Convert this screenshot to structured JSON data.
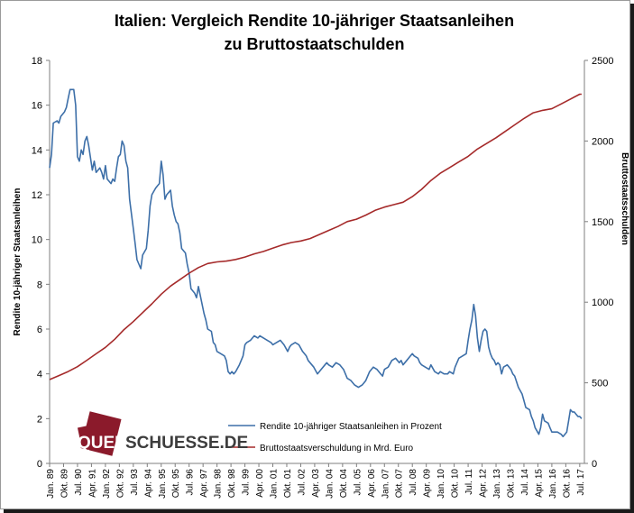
{
  "title_line1": "Italien: Vergleich Rendite 10-jähriger Staatsanleihen",
  "title_line2": "zu Bruttostaatschulden",
  "logo": {
    "part1": "QUER",
    "part2": "SCHUESSE.DE",
    "box_color": "#8b1a2b",
    "text_color": "#3d3d3d"
  },
  "chart_data": {
    "type": "line",
    "title": "Italien: Vergleich Rendite 10-jähriger Staatsanleihen zu Bruttostaatschulden",
    "ylabel_left": "Rendite 10-jähriger Staatsanleihen",
    "ylabel_right": "Bruttostaatsschulden",
    "ylim_left": [
      0,
      18
    ],
    "yticks_left": [
      "0",
      "2",
      "4",
      "6",
      "8",
      "10",
      "12",
      "14",
      "16",
      "18"
    ],
    "ylim_right": [
      0,
      2500
    ],
    "yticks_right": [
      "0",
      "500",
      "1000",
      "1500",
      "2000",
      "2500"
    ],
    "x_start": 1989.0,
    "x_end": 2017.75,
    "x_tick_labels": [
      "Jan. 89",
      "Okt. 89",
      "Jul. 90",
      "Apr. 91",
      "Jan. 92",
      "Okt. 92",
      "Jul. 93",
      "Apr. 94",
      "Jan. 95",
      "Okt. 95",
      "Jul. 96",
      "Apr. 97",
      "Jan. 98",
      "Okt. 98",
      "Jul. 99",
      "Apr. 00",
      "Jan. 01",
      "Okt. 01",
      "Jul. 02",
      "Apr. 03",
      "Jan. 04",
      "Okt. 04",
      "Jul. 05",
      "Apr. 06",
      "Jan. 07",
      "Okt. 07",
      "Jul. 08",
      "Apr. 09",
      "Jan. 10",
      "Okt. 10",
      "Jul. 11",
      "Apr. 12",
      "Jan. 13",
      "Okt. 13",
      "Jul. 14",
      "Apr. 15",
      "Jan. 16",
      "Okt. 16",
      "Jul. 17"
    ],
    "grid": false,
    "legend_position": "bottom-center",
    "series": [
      {
        "name": "Rendite 10-jähriger Staatsanleihen in Prozent",
        "axis": "left",
        "color": "#3d6fa8",
        "points": [
          [
            1989.0,
            13.2
          ],
          [
            1989.1,
            13.8
          ],
          [
            1989.2,
            15.2
          ],
          [
            1989.4,
            15.3
          ],
          [
            1989.5,
            15.2
          ],
          [
            1989.6,
            15.5
          ],
          [
            1989.8,
            15.7
          ],
          [
            1989.9,
            15.9
          ],
          [
            1990.0,
            16.3
          ],
          [
            1990.1,
            16.7
          ],
          [
            1990.3,
            16.7
          ],
          [
            1990.4,
            16.0
          ],
          [
            1990.5,
            13.7
          ],
          [
            1990.6,
            13.5
          ],
          [
            1990.7,
            14.0
          ],
          [
            1990.8,
            13.8
          ],
          [
            1990.9,
            14.4
          ],
          [
            1991.0,
            14.6
          ],
          [
            1991.1,
            14.2
          ],
          [
            1991.3,
            13.1
          ],
          [
            1991.4,
            13.5
          ],
          [
            1991.5,
            13.0
          ],
          [
            1991.7,
            13.2
          ],
          [
            1991.8,
            13.0
          ],
          [
            1991.9,
            12.7
          ],
          [
            1992.0,
            13.3
          ],
          [
            1992.1,
            12.7
          ],
          [
            1992.3,
            12.5
          ],
          [
            1992.4,
            12.7
          ],
          [
            1992.5,
            12.6
          ],
          [
            1992.6,
            13.2
          ],
          [
            1992.7,
            13.7
          ],
          [
            1992.8,
            13.8
          ],
          [
            1992.9,
            14.4
          ],
          [
            1993.0,
            14.2
          ],
          [
            1993.1,
            13.5
          ],
          [
            1993.2,
            13.2
          ],
          [
            1993.3,
            11.8
          ],
          [
            1993.5,
            10.5
          ],
          [
            1993.6,
            9.8
          ],
          [
            1993.7,
            9.1
          ],
          [
            1993.8,
            8.9
          ],
          [
            1993.9,
            8.7
          ],
          [
            1994.0,
            9.3
          ],
          [
            1994.2,
            9.6
          ],
          [
            1994.3,
            10.4
          ],
          [
            1994.4,
            11.5
          ],
          [
            1994.5,
            12.0
          ],
          [
            1994.7,
            12.3
          ],
          [
            1994.8,
            12.4
          ],
          [
            1994.9,
            12.5
          ],
          [
            1995.0,
            13.5
          ],
          [
            1995.1,
            12.9
          ],
          [
            1995.2,
            11.8
          ],
          [
            1995.3,
            12.0
          ],
          [
            1995.5,
            12.2
          ],
          [
            1995.6,
            11.5
          ],
          [
            1995.7,
            11.1
          ],
          [
            1995.8,
            10.8
          ],
          [
            1995.9,
            10.7
          ],
          [
            1996.0,
            10.3
          ],
          [
            1996.1,
            9.6
          ],
          [
            1996.3,
            9.4
          ],
          [
            1996.4,
            8.9
          ],
          [
            1996.5,
            8.5
          ],
          [
            1996.6,
            7.8
          ],
          [
            1996.8,
            7.6
          ],
          [
            1996.9,
            7.4
          ],
          [
            1997.0,
            7.9
          ],
          [
            1997.1,
            7.5
          ],
          [
            1997.3,
            6.7
          ],
          [
            1997.4,
            6.4
          ],
          [
            1997.5,
            6.0
          ],
          [
            1997.7,
            5.9
          ],
          [
            1997.8,
            5.4
          ],
          [
            1997.9,
            5.3
          ],
          [
            1998.0,
            5.0
          ],
          [
            1998.2,
            4.9
          ],
          [
            1998.4,
            4.8
          ],
          [
            1998.5,
            4.6
          ],
          [
            1998.6,
            4.1
          ],
          [
            1998.7,
            4.0
          ],
          [
            1998.8,
            4.1
          ],
          [
            1998.9,
            4.0
          ],
          [
            1999.0,
            4.1
          ],
          [
            1999.2,
            4.4
          ],
          [
            1999.4,
            4.8
          ],
          [
            1999.5,
            5.3
          ],
          [
            1999.6,
            5.4
          ],
          [
            1999.8,
            5.5
          ],
          [
            2000.0,
            5.7
          ],
          [
            2000.2,
            5.6
          ],
          [
            2000.3,
            5.7
          ],
          [
            2000.5,
            5.6
          ],
          [
            2000.7,
            5.5
          ],
          [
            2000.9,
            5.4
          ],
          [
            2001.0,
            5.3
          ],
          [
            2001.2,
            5.4
          ],
          [
            2001.4,
            5.5
          ],
          [
            2001.6,
            5.3
          ],
          [
            2001.8,
            5.0
          ],
          [
            2001.9,
            5.2
          ],
          [
            2002.0,
            5.3
          ],
          [
            2002.2,
            5.4
          ],
          [
            2002.4,
            5.3
          ],
          [
            2002.6,
            5.0
          ],
          [
            2002.8,
            4.8
          ],
          [
            2002.9,
            4.6
          ],
          [
            2003.0,
            4.5
          ],
          [
            2003.2,
            4.3
          ],
          [
            2003.4,
            4.0
          ],
          [
            2003.6,
            4.2
          ],
          [
            2003.8,
            4.4
          ],
          [
            2003.9,
            4.5
          ],
          [
            2004.0,
            4.4
          ],
          [
            2004.2,
            4.3
          ],
          [
            2004.4,
            4.5
          ],
          [
            2004.6,
            4.4
          ],
          [
            2004.8,
            4.2
          ],
          [
            2004.9,
            4.0
          ],
          [
            2005.0,
            3.8
          ],
          [
            2005.2,
            3.7
          ],
          [
            2005.4,
            3.5
          ],
          [
            2005.6,
            3.4
          ],
          [
            2005.8,
            3.5
          ],
          [
            2005.9,
            3.6
          ],
          [
            2006.0,
            3.7
          ],
          [
            2006.2,
            4.1
          ],
          [
            2006.4,
            4.3
          ],
          [
            2006.6,
            4.2
          ],
          [
            2006.8,
            4.0
          ],
          [
            2006.9,
            3.9
          ],
          [
            2007.0,
            4.2
          ],
          [
            2007.2,
            4.3
          ],
          [
            2007.4,
            4.6
          ],
          [
            2007.6,
            4.7
          ],
          [
            2007.8,
            4.5
          ],
          [
            2007.9,
            4.6
          ],
          [
            2008.0,
            4.4
          ],
          [
            2008.2,
            4.6
          ],
          [
            2008.4,
            4.8
          ],
          [
            2008.5,
            4.9
          ],
          [
            2008.6,
            4.8
          ],
          [
            2008.8,
            4.7
          ],
          [
            2008.9,
            4.5
          ],
          [
            2009.0,
            4.4
          ],
          [
            2009.2,
            4.3
          ],
          [
            2009.4,
            4.2
          ],
          [
            2009.5,
            4.4
          ],
          [
            2009.7,
            4.1
          ],
          [
            2009.9,
            4.0
          ],
          [
            2010.0,
            4.1
          ],
          [
            2010.2,
            4.0
          ],
          [
            2010.4,
            4.0
          ],
          [
            2010.5,
            4.1
          ],
          [
            2010.7,
            4.0
          ],
          [
            2010.8,
            4.3
          ],
          [
            2011.0,
            4.7
          ],
          [
            2011.2,
            4.8
          ],
          [
            2011.4,
            4.9
          ],
          [
            2011.5,
            5.5
          ],
          [
            2011.6,
            6.0
          ],
          [
            2011.7,
            6.4
          ],
          [
            2011.8,
            7.1
          ],
          [
            2011.9,
            6.6
          ],
          [
            2012.0,
            5.6
          ],
          [
            2012.1,
            5.0
          ],
          [
            2012.2,
            5.5
          ],
          [
            2012.3,
            5.9
          ],
          [
            2012.4,
            6.0
          ],
          [
            2012.5,
            5.9
          ],
          [
            2012.6,
            5.2
          ],
          [
            2012.7,
            4.9
          ],
          [
            2012.8,
            4.7
          ],
          [
            2012.9,
            4.6
          ],
          [
            2013.0,
            4.4
          ],
          [
            2013.1,
            4.5
          ],
          [
            2013.2,
            4.4
          ],
          [
            2013.3,
            4.0
          ],
          [
            2013.4,
            4.3
          ],
          [
            2013.6,
            4.4
          ],
          [
            2013.7,
            4.3
          ],
          [
            2013.8,
            4.2
          ],
          [
            2013.9,
            4.0
          ],
          [
            2014.0,
            3.9
          ],
          [
            2014.2,
            3.4
          ],
          [
            2014.4,
            3.1
          ],
          [
            2014.5,
            2.8
          ],
          [
            2014.6,
            2.5
          ],
          [
            2014.8,
            2.4
          ],
          [
            2014.9,
            2.1
          ],
          [
            2015.0,
            1.9
          ],
          [
            2015.1,
            1.6
          ],
          [
            2015.3,
            1.3
          ],
          [
            2015.4,
            1.6
          ],
          [
            2015.5,
            2.2
          ],
          [
            2015.6,
            1.9
          ],
          [
            2015.8,
            1.8
          ],
          [
            2015.9,
            1.6
          ],
          [
            2016.0,
            1.4
          ],
          [
            2016.2,
            1.4
          ],
          [
            2016.3,
            1.4
          ],
          [
            2016.5,
            1.3
          ],
          [
            2016.6,
            1.2
          ],
          [
            2016.8,
            1.4
          ],
          [
            2016.9,
            1.9
          ],
          [
            2017.0,
            2.4
          ],
          [
            2017.1,
            2.3
          ],
          [
            2017.2,
            2.3
          ],
          [
            2017.3,
            2.2
          ],
          [
            2017.4,
            2.1
          ],
          [
            2017.5,
            2.1
          ],
          [
            2017.6,
            2.0
          ]
        ]
      },
      {
        "name": "Bruttostaatsverschuldung in Mrd. Euro",
        "axis": "right",
        "color": "#a52a2a",
        "points": [
          [
            1989.0,
            520
          ],
          [
            1989.5,
            545
          ],
          [
            1990.0,
            570
          ],
          [
            1990.5,
            600
          ],
          [
            1991.0,
            640
          ],
          [
            1991.5,
            680
          ],
          [
            1992.0,
            720
          ],
          [
            1992.5,
            770
          ],
          [
            1993.0,
            830
          ],
          [
            1993.5,
            880
          ],
          [
            1994.0,
            935
          ],
          [
            1994.5,
            990
          ],
          [
            1995.0,
            1050
          ],
          [
            1995.5,
            1100
          ],
          [
            1996.0,
            1140
          ],
          [
            1996.5,
            1180
          ],
          [
            1997.0,
            1215
          ],
          [
            1997.5,
            1240
          ],
          [
            1998.0,
            1250
          ],
          [
            1998.5,
            1255
          ],
          [
            1999.0,
            1265
          ],
          [
            1999.5,
            1280
          ],
          [
            2000.0,
            1300
          ],
          [
            2000.5,
            1315
          ],
          [
            2001.0,
            1335
          ],
          [
            2001.5,
            1355
          ],
          [
            2002.0,
            1370
          ],
          [
            2002.5,
            1380
          ],
          [
            2003.0,
            1395
          ],
          [
            2003.5,
            1420
          ],
          [
            2004.0,
            1445
          ],
          [
            2004.5,
            1470
          ],
          [
            2005.0,
            1500
          ],
          [
            2005.5,
            1515
          ],
          [
            2006.0,
            1540
          ],
          [
            2006.5,
            1570
          ],
          [
            2007.0,
            1590
          ],
          [
            2007.5,
            1605
          ],
          [
            2008.0,
            1620
          ],
          [
            2008.5,
            1655
          ],
          [
            2009.0,
            1700
          ],
          [
            2009.5,
            1755
          ],
          [
            2010.0,
            1800
          ],
          [
            2010.5,
            1835
          ],
          [
            2011.0,
            1870
          ],
          [
            2011.5,
            1905
          ],
          [
            2012.0,
            1950
          ],
          [
            2012.5,
            1985
          ],
          [
            2013.0,
            2020
          ],
          [
            2013.5,
            2060
          ],
          [
            2014.0,
            2100
          ],
          [
            2014.5,
            2140
          ],
          [
            2015.0,
            2175
          ],
          [
            2015.5,
            2190
          ],
          [
            2016.0,
            2200
          ],
          [
            2016.5,
            2230
          ],
          [
            2017.0,
            2260
          ],
          [
            2017.5,
            2290
          ],
          [
            2017.6,
            2290
          ]
        ]
      }
    ]
  }
}
